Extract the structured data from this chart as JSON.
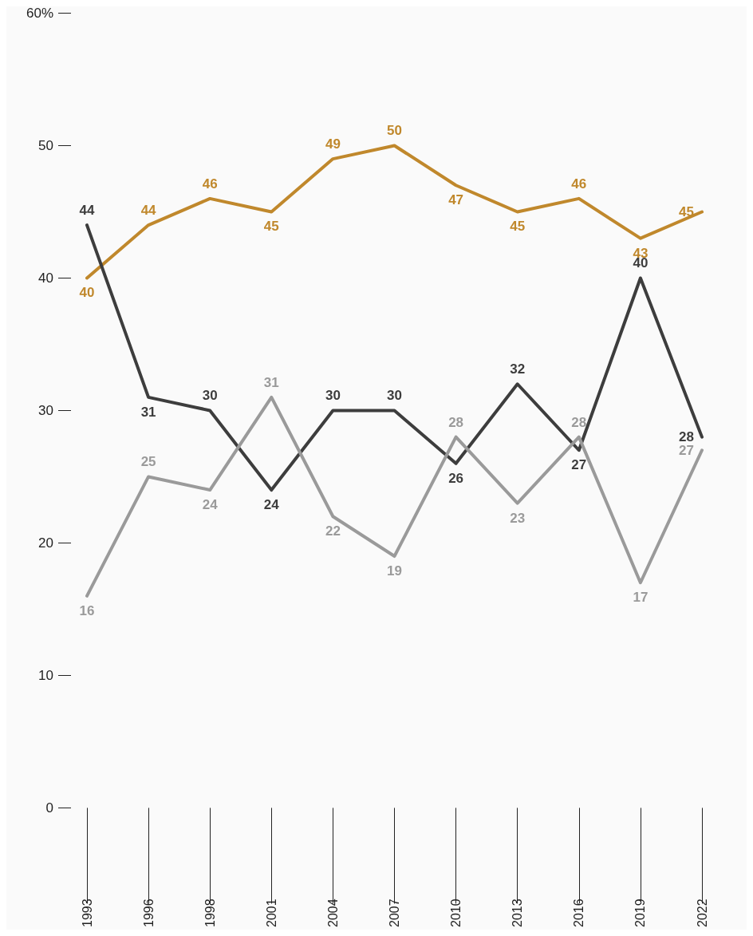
{
  "chart_data": {
    "type": "line",
    "categories": [
      "1993",
      "1996",
      "1998",
      "2001",
      "2004",
      "2007",
      "2010",
      "2013",
      "2016",
      "2019",
      "2022"
    ],
    "series": [
      {
        "color": "#c0882c",
        "values": [
          40,
          44,
          46,
          45,
          49,
          50,
          47,
          45,
          46,
          43,
          45
        ]
      },
      {
        "color": "#3d3d3d",
        "values": [
          44,
          31,
          30,
          24,
          30,
          30,
          26,
          32,
          27,
          40,
          28
        ]
      },
      {
        "color": "#9a9a9a",
        "values": [
          16,
          25,
          24,
          31,
          22,
          19,
          28,
          23,
          28,
          17,
          27
        ]
      }
    ],
    "ylim": [
      0,
      60
    ],
    "yticks": [
      0,
      10,
      20,
      30,
      40,
      50,
      {
        "value": 60,
        "label": "60%"
      }
    ],
    "grid": false,
    "marker": "none",
    "line_style": "solid",
    "data_labels": true
  }
}
